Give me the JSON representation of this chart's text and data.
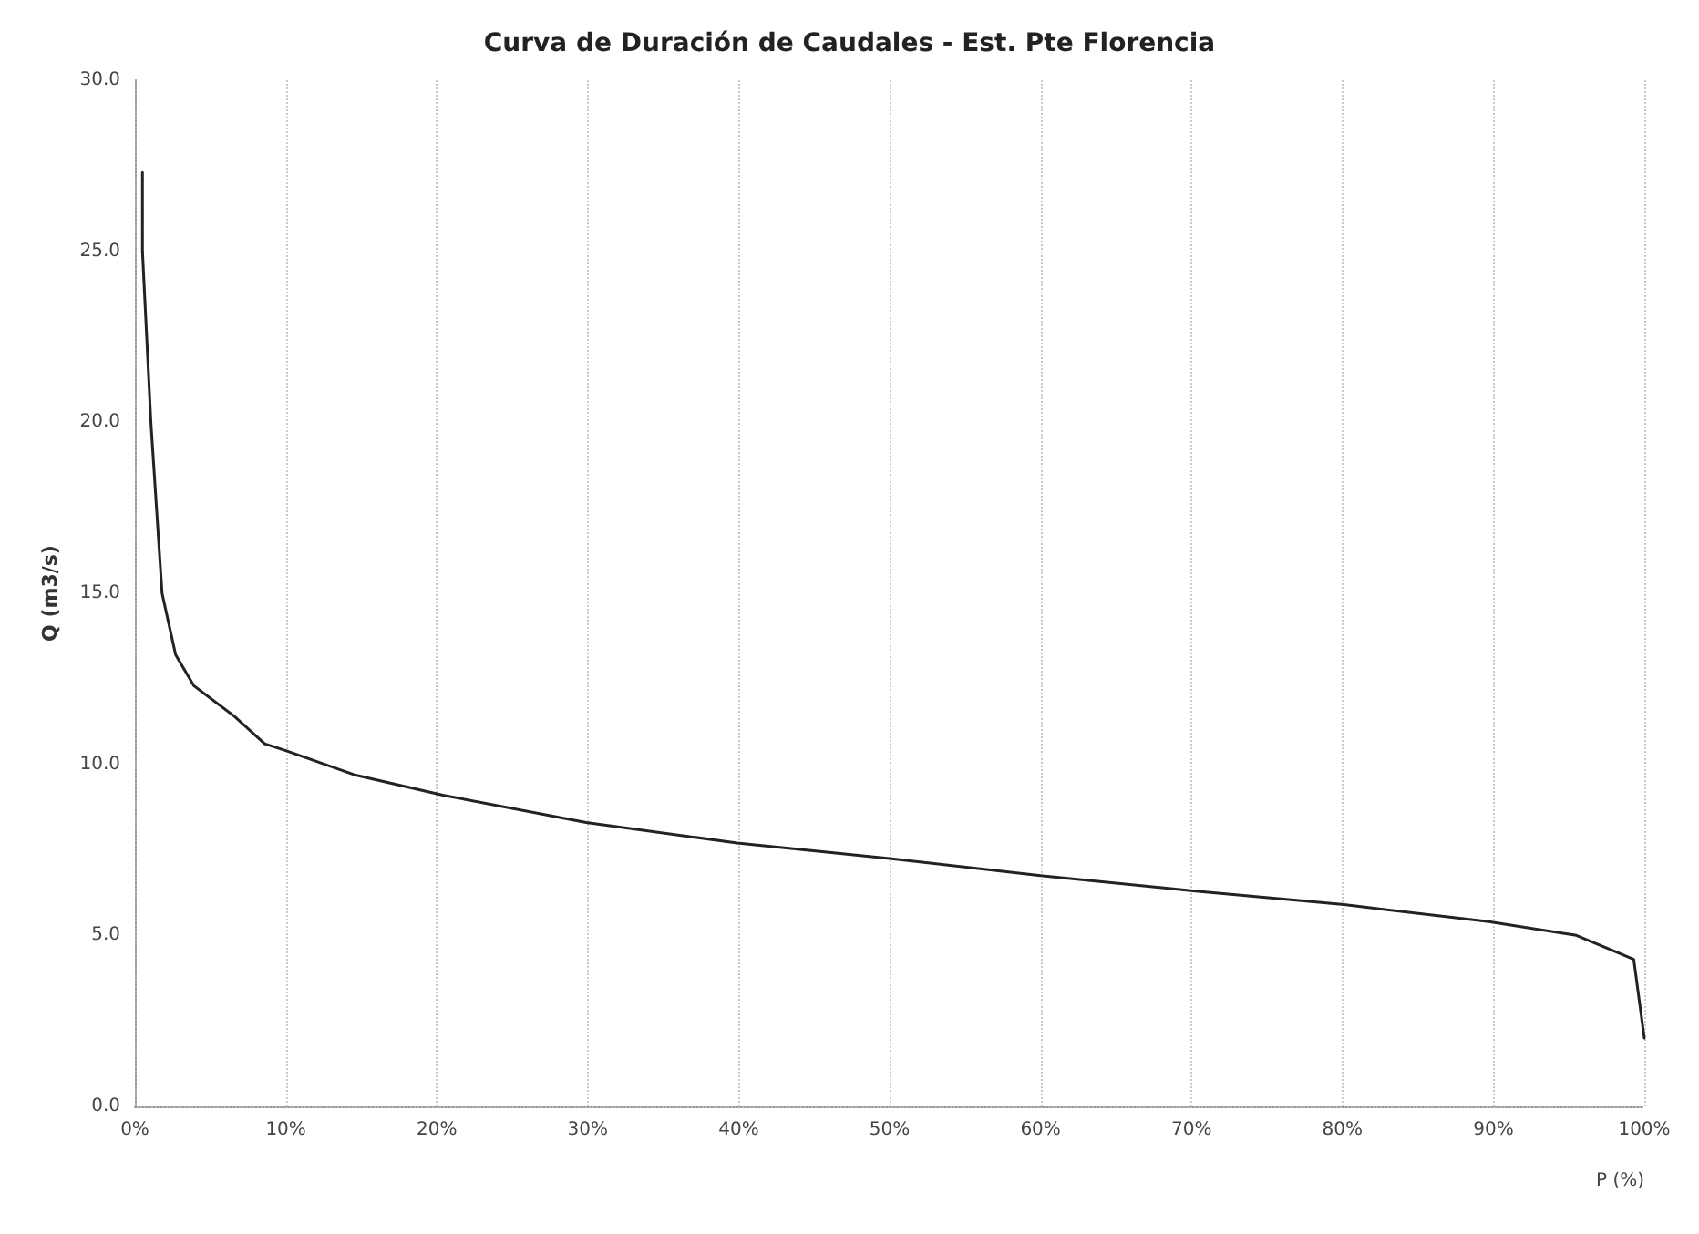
{
  "chart_data": {
    "type": "line",
    "title": "Curva de Duración de Caudales - Est. Pte Florencia",
    "xlabel": "P (%)",
    "ylabel": "Q (m3/s)",
    "x": [
      0.5,
      0.5,
      1.06,
      1.8,
      2.7,
      3.9,
      6.6,
      8.6,
      10,
      14.5,
      20.4,
      29.9,
      39.9,
      50,
      60,
      70.1,
      80.1,
      89.7,
      95.5,
      99.3,
      100
    ],
    "series": [
      {
        "color": "#222222",
        "values": [
          27.3,
          25.0,
          20.0,
          15.0,
          13.2,
          12.3,
          11.4,
          10.6,
          10.4,
          9.7,
          9.1,
          8.3,
          7.7,
          7.25,
          6.75,
          6.3,
          5.9,
          5.4,
          5.0,
          4.3,
          2.0
        ]
      }
    ],
    "xlim": [
      0,
      100
    ],
    "xticks": [
      {
        "value": 0,
        "label": "0%"
      },
      {
        "value": 10,
        "label": "10%"
      },
      {
        "value": 20,
        "label": "20%"
      },
      {
        "value": 30,
        "label": "30%"
      },
      {
        "value": 40,
        "label": "40%"
      },
      {
        "value": 50,
        "label": "50%"
      },
      {
        "value": 60,
        "label": "60%"
      },
      {
        "value": 70,
        "label": "70%"
      },
      {
        "value": 80,
        "label": "80%"
      },
      {
        "value": 90,
        "label": "90%"
      },
      {
        "value": 100,
        "label": "100%"
      }
    ],
    "ylim": [
      0,
      30
    ],
    "yticks": [
      {
        "value": 0,
        "label": "0.0"
      },
      {
        "value": 5,
        "label": "5.0"
      },
      {
        "value": 10,
        "label": "10.0"
      },
      {
        "value": 15,
        "label": "15.0"
      },
      {
        "value": 20,
        "label": "20.0"
      },
      {
        "value": 25,
        "label": "25.0"
      },
      {
        "value": 30,
        "label": "30.0"
      }
    ],
    "grid": "x",
    "marker": "none",
    "line_style": "solid"
  }
}
